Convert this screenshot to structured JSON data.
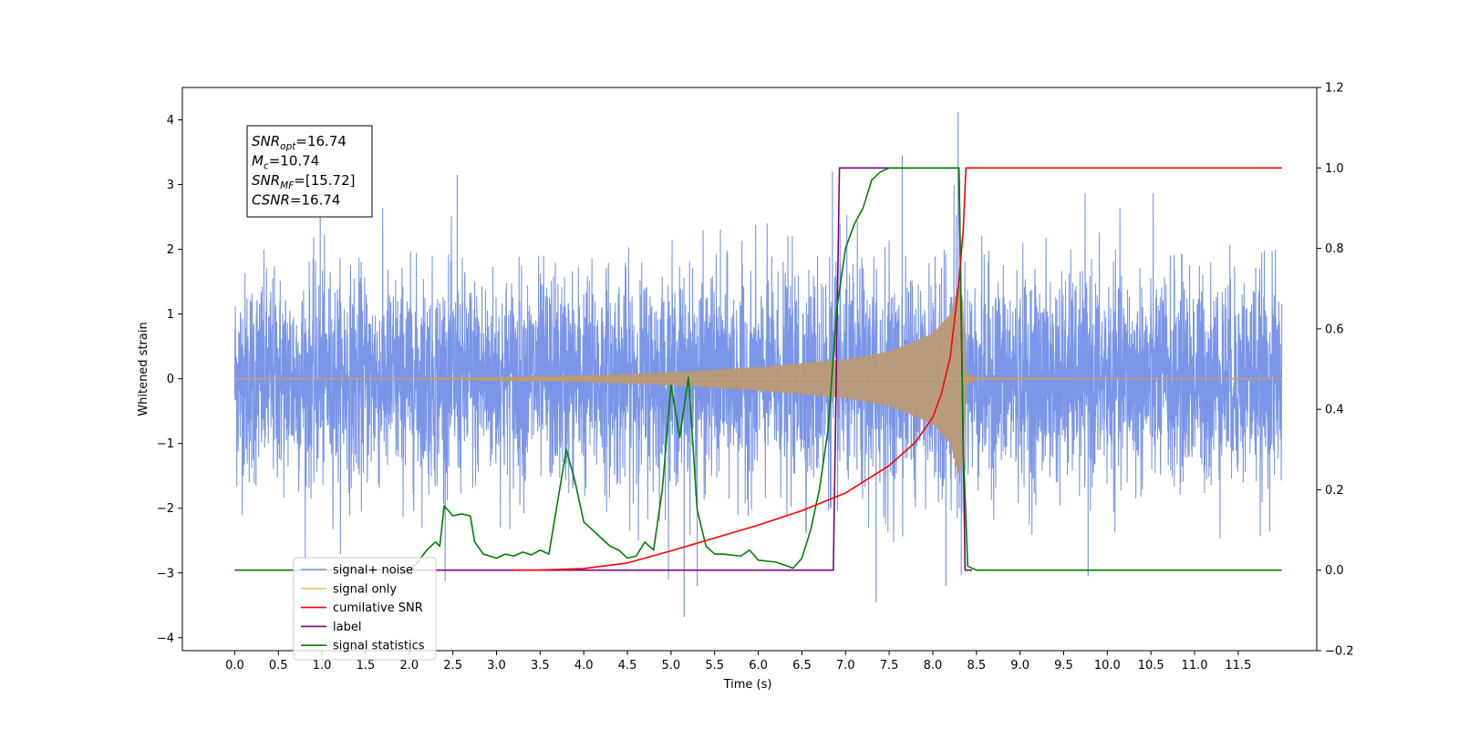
{
  "chart_data": {
    "type": "line",
    "title": "",
    "xlabel": "Time (s)",
    "ylabel_left": "Whitened strain",
    "ylabel_right": "",
    "xlim": [
      -0.6,
      12.4
    ],
    "ylim_left": [
      -4.2,
      4.5
    ],
    "ylim_right": [
      -0.2,
      1.2
    ],
    "x_ticks": [
      "0.0",
      "0.5",
      "1.0",
      "1.5",
      "2.0",
      "2.5",
      "3.0",
      "3.5",
      "4.0",
      "4.5",
      "5.0",
      "5.5",
      "6.0",
      "6.5",
      "7.0",
      "7.5",
      "8.0",
      "8.5",
      "9.0",
      "9.5",
      "10.0",
      "10.5",
      "11.0",
      "11.5"
    ],
    "y_left_ticks": [
      "4",
      "3",
      "2",
      "1",
      "0",
      "−1",
      "−2",
      "−3",
      "−4"
    ],
    "y_right_ticks": [
      "1.2",
      "1.0",
      "0.8",
      "0.6",
      "0.4",
      "0.2",
      "0.0",
      "−0.2"
    ],
    "grid": false,
    "legend_position": "lower-left",
    "annotation": {
      "lines": [
        {
          "sym": "SNR",
          "sub": "opt",
          "val": "=16.74"
        },
        {
          "sym": "M",
          "sub": "c",
          "val": "=10.74"
        },
        {
          "sym": "SNR",
          "sub": "MF",
          "val": "=[15.72]"
        },
        {
          "sym": "CSNR",
          "sub": "",
          "val": "=16.74"
        }
      ]
    },
    "series": [
      {
        "name": "signal+ noise",
        "axis": "left",
        "color": "#7b96e8",
        "kind": "noise",
        "x_range": [
          0.0,
          12.0
        ],
        "noise_std": 0.8,
        "noise_peak_max": 4.12,
        "noise_peak_min": -3.68
      },
      {
        "name": "signal only",
        "axis": "left",
        "color": "#ffbf66",
        "kind": "chirp",
        "x_range": [
          0.0,
          12.0
        ],
        "envelope": [
          [
            0.0,
            0.0
          ],
          [
            2.0,
            0.01
          ],
          [
            4.0,
            0.05
          ],
          [
            5.0,
            0.1
          ],
          [
            6.0,
            0.18
          ],
          [
            7.0,
            0.3
          ],
          [
            7.5,
            0.42
          ],
          [
            8.0,
            0.7
          ],
          [
            8.2,
            1.0
          ],
          [
            8.3,
            1.5
          ],
          [
            8.35,
            1.2
          ],
          [
            8.38,
            0.1
          ],
          [
            8.5,
            0.02
          ],
          [
            12.0,
            0.0
          ]
        ]
      },
      {
        "name": "cumilative SNR",
        "axis": "right",
        "color": "#ff0000",
        "kind": "line",
        "points": [
          [
            3.2,
            0.0
          ],
          [
            3.5,
            0.0005
          ],
          [
            4.0,
            0.004
          ],
          [
            4.5,
            0.018
          ],
          [
            5.0,
            0.048
          ],
          [
            5.5,
            0.08
          ],
          [
            6.0,
            0.112
          ],
          [
            6.5,
            0.148
          ],
          [
            7.0,
            0.192
          ],
          [
            7.5,
            0.26
          ],
          [
            7.8,
            0.318
          ],
          [
            8.0,
            0.38
          ],
          [
            8.1,
            0.44
          ],
          [
            8.2,
            0.53
          ],
          [
            8.3,
            0.72
          ],
          [
            8.35,
            0.85
          ],
          [
            8.38,
            1.0
          ],
          [
            11.5,
            1.0
          ],
          [
            12.0,
            1.0
          ]
        ]
      },
      {
        "name": "label",
        "axis": "right",
        "color": "#800080",
        "kind": "line",
        "points": [
          [
            2.0,
            0.0
          ],
          [
            6.86,
            0.0
          ],
          [
            6.93,
            1.0
          ],
          [
            8.3,
            1.0
          ],
          [
            8.37,
            0.0
          ],
          [
            8.45,
            0.0
          ]
        ]
      },
      {
        "name": "signal statistics",
        "axis": "right",
        "color": "#008000",
        "kind": "line",
        "points": [
          [
            0.0,
            0.0
          ],
          [
            2.0,
            0.0
          ],
          [
            2.1,
            0.02
          ],
          [
            2.2,
            0.05
          ],
          [
            2.3,
            0.07
          ],
          [
            2.35,
            0.06
          ],
          [
            2.4,
            0.16
          ],
          [
            2.5,
            0.135
          ],
          [
            2.6,
            0.14
          ],
          [
            2.7,
            0.135
          ],
          [
            2.75,
            0.07
          ],
          [
            2.85,
            0.04
          ],
          [
            3.0,
            0.03
          ],
          [
            3.1,
            0.04
          ],
          [
            3.2,
            0.035
          ],
          [
            3.3,
            0.045
          ],
          [
            3.4,
            0.038
          ],
          [
            3.5,
            0.05
          ],
          [
            3.6,
            0.04
          ],
          [
            3.7,
            0.17
          ],
          [
            3.8,
            0.3
          ],
          [
            3.9,
            0.22
          ],
          [
            4.0,
            0.12
          ],
          [
            4.1,
            0.1
          ],
          [
            4.2,
            0.08
          ],
          [
            4.3,
            0.06
          ],
          [
            4.4,
            0.05
          ],
          [
            4.5,
            0.03
          ],
          [
            4.6,
            0.035
          ],
          [
            4.7,
            0.07
          ],
          [
            4.8,
            0.05
          ],
          [
            4.9,
            0.2
          ],
          [
            5.0,
            0.46
          ],
          [
            5.1,
            0.33
          ],
          [
            5.2,
            0.48
          ],
          [
            5.3,
            0.15
          ],
          [
            5.4,
            0.06
          ],
          [
            5.5,
            0.04
          ],
          [
            5.6,
            0.04
          ],
          [
            5.8,
            0.035
          ],
          [
            5.9,
            0.05
          ],
          [
            6.0,
            0.025
          ],
          [
            6.2,
            0.02
          ],
          [
            6.4,
            0.005
          ],
          [
            6.5,
            0.03
          ],
          [
            6.6,
            0.1
          ],
          [
            6.7,
            0.2
          ],
          [
            6.8,
            0.35
          ],
          [
            6.9,
            0.65
          ],
          [
            7.0,
            0.8
          ],
          [
            7.1,
            0.86
          ],
          [
            7.2,
            0.9
          ],
          [
            7.3,
            0.97
          ],
          [
            7.4,
            0.99
          ],
          [
            7.5,
            1.0
          ],
          [
            8.3,
            1.0
          ],
          [
            8.32,
            0.7
          ],
          [
            8.35,
            0.3
          ],
          [
            8.4,
            0.01
          ],
          [
            8.5,
            0.0
          ],
          [
            12.0,
            0.0
          ]
        ]
      }
    ]
  }
}
